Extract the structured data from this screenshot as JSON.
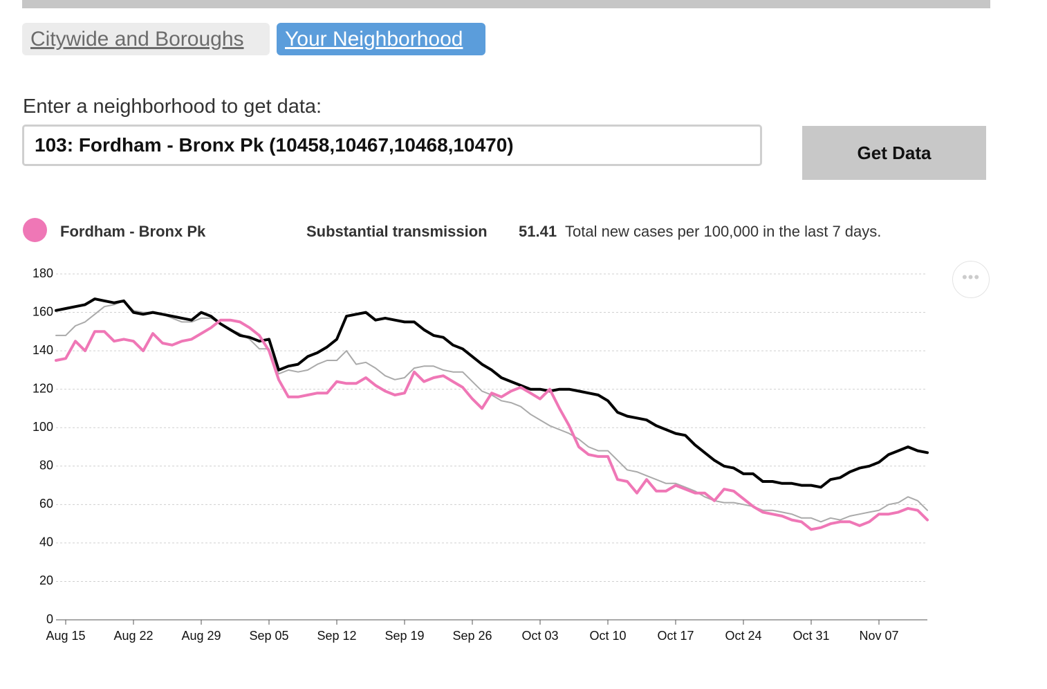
{
  "tabs": [
    "Citywide and Boroughs",
    "Your Neighborhood"
  ],
  "prompt": "Enter a neighborhood to get data:",
  "input_value": "103: Fordham - Bronx Pk (10458,10467,10468,10470)",
  "button": "Get Data",
  "summary": {
    "level": "Substantial transmission",
    "rate": 51.41,
    "description": "Total new cases per 100,000 in the last 7 days."
  },
  "chart_data": {
    "type": "line",
    "categories": [
      null,
      "Aug 15",
      null,
      null,
      null,
      null,
      null,
      null,
      "Aug 22",
      null,
      null,
      null,
      null,
      null,
      null,
      "Aug 29",
      null,
      null,
      null,
      null,
      null,
      null,
      "Sep 05",
      null,
      null,
      null,
      null,
      null,
      null,
      "Sep 12",
      null,
      null,
      null,
      null,
      null,
      null,
      "Sep 19",
      null,
      null,
      null,
      null,
      null,
      null,
      "Sep 26",
      null,
      null,
      null,
      null,
      null,
      null,
      "Oct 03",
      null,
      null,
      null,
      null,
      null,
      null,
      "Oct 10",
      null,
      null,
      null,
      null,
      null,
      null,
      "Oct 17",
      null,
      null,
      null,
      null,
      null,
      null,
      "Oct 24",
      null,
      null,
      null,
      null,
      null,
      null,
      "Oct 31",
      null,
      null,
      null,
      null,
      null,
      null,
      "Nov 07",
      null,
      null,
      null,
      null,
      null
    ],
    "series": [
      {
        "color": "#aaaaaa",
        "values": [
          148,
          148,
          153,
          155,
          159,
          163,
          164,
          166,
          161,
          160,
          160,
          159,
          157,
          155,
          155,
          157,
          157,
          154,
          151,
          149,
          146,
          141,
          141,
          128,
          130,
          129,
          130,
          133,
          135,
          135,
          140,
          133,
          134,
          131,
          127,
          125,
          126,
          131,
          132,
          132,
          130,
          129,
          129,
          124,
          119,
          117,
          114,
          113,
          111,
          107,
          104,
          101,
          99,
          97,
          94,
          90,
          88,
          88,
          83,
          78,
          77,
          75,
          73,
          71,
          71,
          69,
          67,
          64,
          62,
          61,
          61,
          60,
          59,
          57,
          57,
          56,
          55,
          53,
          53,
          51,
          53,
          52,
          54,
          55,
          56,
          57,
          60,
          61,
          64,
          62,
          57
        ]
      },
      {
        "color": "#000000",
        "values": [
          161,
          162,
          163,
          164,
          167,
          166,
          165,
          166,
          160,
          159,
          160,
          159,
          158,
          157,
          156,
          160,
          158,
          154,
          151,
          148,
          147,
          145,
          146,
          130,
          132,
          133,
          137,
          139,
          142,
          146,
          158,
          159,
          160,
          156,
          157,
          156,
          155,
          155,
          151,
          148,
          147,
          143,
          141,
          137,
          133,
          130,
          126,
          124,
          122,
          120,
          120,
          119,
          120,
          120,
          119,
          118,
          117,
          114,
          108,
          106,
          105,
          104,
          101,
          99,
          97,
          96,
          91,
          87,
          83,
          80,
          79,
          76,
          76,
          72,
          72,
          71,
          71,
          70,
          70,
          69,
          73,
          74,
          77,
          79,
          80,
          82,
          86,
          88,
          90,
          88,
          87
        ]
      },
      {
        "name": "Fordham - Bronx Pk",
        "color": "#ef77b6",
        "values": [
          135,
          136,
          145,
          140,
          150,
          150,
          145,
          146,
          145,
          140,
          149,
          144,
          143,
          145,
          146,
          149,
          152,
          156,
          156,
          155,
          152,
          148,
          140,
          125,
          116,
          116,
          117,
          118,
          118,
          124,
          123,
          123,
          126,
          122,
          119,
          117,
          118,
          129,
          124,
          126,
          127,
          124,
          121,
          115,
          110,
          118,
          116,
          119,
          121,
          118,
          115,
          120,
          110,
          101,
          90,
          86,
          85,
          85,
          73,
          72,
          66,
          73,
          67,
          67,
          70,
          68,
          66,
          66,
          62,
          68,
          67,
          63,
          59,
          56,
          55,
          54,
          52,
          51,
          47,
          48,
          50,
          51,
          51,
          49,
          51,
          55,
          55,
          56,
          58,
          57,
          52
        ]
      }
    ],
    "ylim": [
      0,
      180
    ],
    "yticks": [
      0,
      20,
      40,
      60,
      80,
      100,
      120,
      140,
      160,
      180
    ],
    "grid": true
  }
}
